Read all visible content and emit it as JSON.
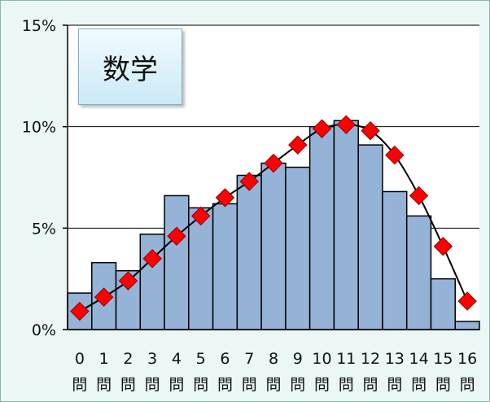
{
  "chart_data": {
    "type": "bar",
    "title": "数学",
    "categories": [
      "0問",
      "1問",
      "2問",
      "3問",
      "4問",
      "5問",
      "6問",
      "7問",
      "8問",
      "9問",
      "10問",
      "11問",
      "12問",
      "13問",
      "14問",
      "15問",
      "16問"
    ],
    "category_numbers": [
      "0",
      "1",
      "2",
      "3",
      "4",
      "5",
      "6",
      "7",
      "8",
      "9",
      "10",
      "11",
      "12",
      "13",
      "14",
      "15",
      "16"
    ],
    "category_unit": "問",
    "series": [
      {
        "type": "bar",
        "color": "#95b3d7",
        "values": [
          1.8,
          3.3,
          2.9,
          4.7,
          6.6,
          6.0,
          6.2,
          7.6,
          8.2,
          8.0,
          10.0,
          10.3,
          9.1,
          6.8,
          5.6,
          2.5,
          0.4
        ]
      },
      {
        "type": "line",
        "color": "#000000",
        "marker": "diamond",
        "marker_color": "#ff0000",
        "values": [
          0.9,
          1.6,
          2.4,
          3.5,
          4.6,
          5.6,
          6.5,
          7.3,
          8.2,
          9.1,
          9.9,
          10.1,
          9.8,
          8.6,
          6.6,
          4.1,
          1.4
        ]
      }
    ],
    "yticks": [
      "0%",
      "5%",
      "10%",
      "15%"
    ],
    "ytick_values": [
      0,
      5,
      10,
      15
    ],
    "ylim": [
      0,
      15
    ],
    "grid": true,
    "legend": "none"
  }
}
